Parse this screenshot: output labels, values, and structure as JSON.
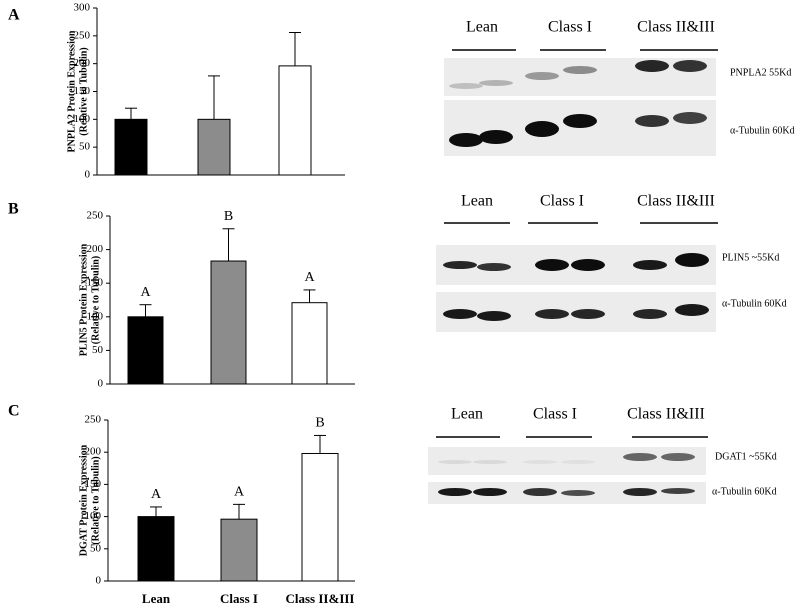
{
  "chart_data": [
    {
      "type": "bar",
      "panel_label": "A",
      "y_label": [
        "PNPLA2  Protein Expression",
        "(Relative to Tubulin)"
      ],
      "categories": [
        null,
        null,
        null
      ],
      "values": [
        100,
        100,
        196
      ],
      "errors": [
        20,
        78,
        60
      ],
      "colors": [
        "#000000",
        "#8c8c8c",
        "#ffffff"
      ],
      "ylim": [
        0,
        300
      ],
      "yticks": [
        0,
        50,
        100,
        150,
        200,
        250,
        300
      ],
      "blot": {
        "groups": [
          "Lean",
          "Class I",
          "Class II&III"
        ],
        "bands": [
          "PNPLA2 55Kd",
          "α-Tubulin 60Kd"
        ]
      }
    },
    {
      "type": "bar",
      "panel_label": "B",
      "y_label": [
        "PLIN5 Protein Expression",
        "(Relative to Tubulin)"
      ],
      "categories": [
        null,
        null,
        null
      ],
      "values": [
        100,
        183,
        121
      ],
      "errors": [
        18,
        48,
        19
      ],
      "letters": [
        "A",
        "B",
        "A"
      ],
      "colors": [
        "#000000",
        "#8c8c8c",
        "#ffffff"
      ],
      "ylim": [
        0,
        250
      ],
      "yticks": [
        0,
        50,
        100,
        150,
        200,
        250
      ],
      "blot": {
        "groups": [
          "Lean",
          "Class I",
          "Class II&III"
        ],
        "bands": [
          "PLIN5  ~55Kd",
          "α-Tubulin 60Kd"
        ]
      }
    },
    {
      "type": "bar",
      "panel_label": "C",
      "y_label": [
        "DGAT Protein Expression",
        "(Relative to Tubulin)"
      ],
      "categories": [
        "Lean",
        "Class I",
        "Class II&III"
      ],
      "values": [
        100,
        96,
        198
      ],
      "errors": [
        15,
        23,
        28
      ],
      "letters": [
        "A",
        "A",
        "B"
      ],
      "colors": [
        "#000000",
        "#8c8c8c",
        "#ffffff"
      ],
      "ylim": [
        0,
        250
      ],
      "yticks": [
        0,
        50,
        100,
        150,
        200,
        250
      ],
      "blot": {
        "groups": [
          "Lean",
          "Class I",
          "Class II&III"
        ],
        "bands": [
          "DGAT1  ~55Kd",
          "α-Tubulin 60Kd"
        ]
      }
    }
  ]
}
